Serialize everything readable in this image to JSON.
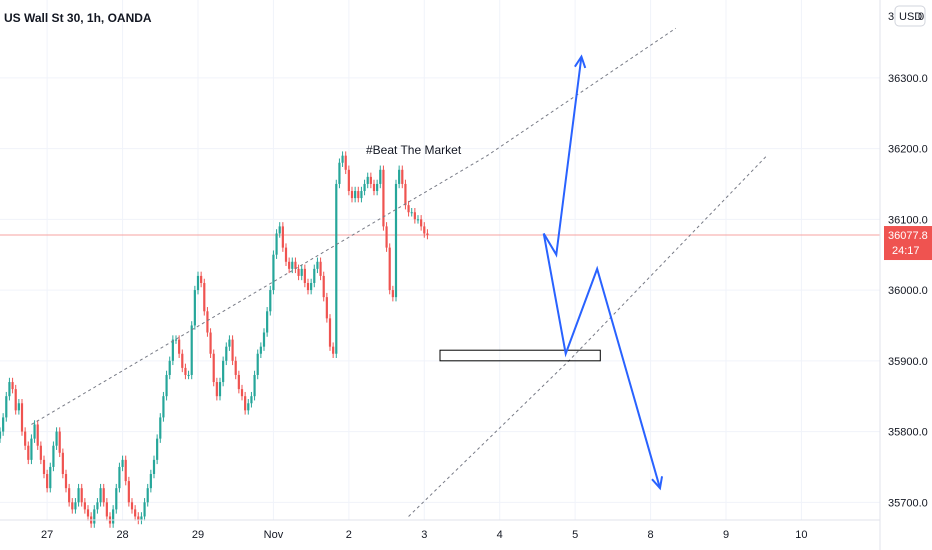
{
  "chart_data": {
    "type": "candlestick",
    "title": "US Wall St 30, 1h, OANDA",
    "currency_button": "USD",
    "annotation": "#Beat The Market",
    "ylim": [
      35675,
      36410
    ],
    "y_ticks": [
      35700,
      35800,
      35900,
      36000,
      36100,
      36200,
      36300
    ],
    "y_tick_labels": [
      "35700.0",
      "35800.0",
      "35900.0",
      "36000.0",
      "36100.0",
      "36200.0",
      "36300.0"
    ],
    "y_top_label_partial": "3",
    "y_top_value_partial": "0",
    "x_ticks": [
      "27",
      "28",
      "29",
      "Nov",
      "2",
      "3",
      "4",
      "5",
      "8",
      "9",
      "10"
    ],
    "x_tick_positions": [
      0,
      24,
      48,
      72,
      96,
      120,
      144,
      168,
      192,
      216,
      240
    ],
    "x_range": [
      -15,
      265
    ],
    "current_price": "36077.8",
    "countdown": "24:17",
    "current_price_value": 36077.8,
    "colors": {
      "up": "#26a69a",
      "down": "#ef5350",
      "drawing": "#2962ff",
      "price_line": "#f7a3a0",
      "grid": "#f0f3fa"
    },
    "candles": {
      "x_start": -15,
      "x_step": 1,
      "closes": [
        35800,
        35820,
        35850,
        35870,
        35860,
        35830,
        35840,
        35800,
        35780,
        35760,
        35790,
        35810,
        35780,
        35760,
        35740,
        35720,
        35750,
        35780,
        35800,
        35770,
        35740,
        35720,
        35700,
        35690,
        35700,
        35720,
        35700,
        35690,
        35680,
        35670,
        35690,
        35700,
        35720,
        35700,
        35680,
        35670,
        35690,
        35720,
        35750,
        35760,
        35730,
        35700,
        35690,
        35680,
        35675,
        35680,
        35700,
        35720,
        35740,
        35760,
        35790,
        35820,
        35850,
        35880,
        35900,
        35930,
        35930,
        35910,
        35890,
        35880,
        35880,
        35950,
        36000,
        36020,
        36010,
        35970,
        35940,
        35910,
        35870,
        35850,
        35870,
        35900,
        35920,
        35930,
        35900,
        35880,
        35860,
        35850,
        35830,
        35840,
        35850,
        35880,
        35910,
        35920,
        35940,
        35970,
        36000,
        36050,
        36080,
        36090,
        36060,
        36040,
        36030,
        36040,
        36030,
        36020,
        36030,
        36010,
        36000,
        36010,
        36030,
        36040,
        36020,
        35990,
        35960,
        35920,
        35910,
        36150,
        36180,
        36190,
        36170,
        36140,
        36130,
        36140,
        36130,
        36140,
        36150,
        36160,
        36150,
        36140,
        36150,
        36170,
        36090,
        36060,
        36000,
        35990,
        36150,
        36170,
        36150,
        36120,
        36110,
        36110,
        36100,
        36100,
        36090,
        36080,
        36077.8
      ]
    },
    "channel": {
      "upper": [
        [
          -5,
          35810
        ],
        [
          140,
          36190
        ],
        [
          200,
          36370
        ]
      ],
      "lower": [
        [
          115,
          35680
        ],
        [
          166,
          35900
        ],
        [
          229,
          36190
        ]
      ]
    },
    "zone": {
      "x0": 125,
      "x1": 176,
      "y0": 35900,
      "y1": 35915
    },
    "paths": [
      {
        "points": [
          [
            158,
            36080
          ],
          [
            162,
            36050
          ],
          [
            170,
            36330
          ]
        ],
        "arrow": true
      },
      {
        "points": [
          [
            158,
            36080
          ],
          [
            165,
            35910
          ],
          [
            175,
            36030
          ],
          [
            195,
            35720
          ]
        ],
        "arrow": true
      }
    ]
  }
}
